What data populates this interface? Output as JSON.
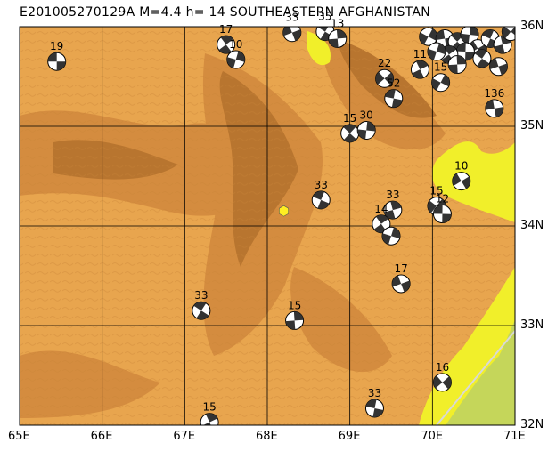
{
  "title": "E201005270129A  M=4.4  h=  14  SOUTHEASTERN  AFGHANISTAN",
  "axes": {
    "lon_labels": [
      "65E",
      "66E",
      "67E",
      "68E",
      "69E",
      "70E",
      "71E"
    ],
    "lat_labels": [
      "36N",
      "35N",
      "34N",
      "33N",
      "32N"
    ],
    "lon_range": [
      65,
      71
    ],
    "lat_range": [
      32,
      36
    ]
  },
  "colors": {
    "terrain_base": "#e8a54e",
    "terrain_mid": "#d48c3f",
    "terrain_high": "#b8752f",
    "lowland_yellow": "#f1ef2a",
    "lowland_green": "#c5d65a",
    "grid": "#000000",
    "beachball": "#ffffff",
    "epicenter": "#ffee22"
  },
  "event": {
    "id": "E201005270129A",
    "magnitude": 4.4,
    "depth_km": 14,
    "lon": 68.2,
    "lat": 34.15
  },
  "mechanisms": [
    {
      "depth": "19",
      "lon": 65.45,
      "lat": 35.65
    },
    {
      "depth": "17",
      "lon": 67.5,
      "lat": 35.82
    },
    {
      "depth": "10",
      "lon": 67.62,
      "lat": 35.67
    },
    {
      "depth": "33",
      "lon": 68.3,
      "lat": 35.94
    },
    {
      "depth": "35",
      "lon": 68.7,
      "lat": 35.95
    },
    {
      "depth": "13",
      "lon": 68.85,
      "lat": 35.88
    },
    {
      "depth": "22",
      "lon": 69.42,
      "lat": 35.48
    },
    {
      "depth": "52",
      "lon": 69.53,
      "lat": 35.28
    },
    {
      "depth": "11",
      "lon": 69.85,
      "lat": 35.57
    },
    {
      "depth": "15",
      "lon": 70.1,
      "lat": 35.44
    },
    {
      "depth": "136",
      "lon": 70.75,
      "lat": 35.18
    },
    {
      "depth": "15",
      "lon": 69.0,
      "lat": 34.93
    },
    {
      "depth": "30",
      "lon": 69.2,
      "lat": 34.96
    },
    {
      "depth": "10",
      "lon": 70.35,
      "lat": 34.45
    },
    {
      "depth": "33",
      "lon": 68.65,
      "lat": 34.26
    },
    {
      "depth": "33",
      "lon": 69.52,
      "lat": 34.16
    },
    {
      "depth": "15",
      "lon": 70.05,
      "lat": 34.2
    },
    {
      "depth": "12",
      "lon": 70.12,
      "lat": 34.12
    },
    {
      "depth": "14",
      "lon": 69.38,
      "lat": 34.02
    },
    {
      "depth": "",
      "lon": 69.5,
      "lat": 33.9
    },
    {
      "depth": "17",
      "lon": 69.62,
      "lat": 33.42
    },
    {
      "depth": "33",
      "lon": 67.2,
      "lat": 33.15
    },
    {
      "depth": "15",
      "lon": 68.33,
      "lat": 33.05
    },
    {
      "depth": "16",
      "lon": 70.12,
      "lat": 32.43
    },
    {
      "depth": "33",
      "lon": 69.3,
      "lat": 32.17
    },
    {
      "depth": "15",
      "lon": 67.3,
      "lat": 32.03
    },
    {
      "depth": "",
      "lon": 69.95,
      "lat": 35.9
    },
    {
      "depth": "",
      "lon": 70.15,
      "lat": 35.88
    },
    {
      "depth": "",
      "lon": 70.3,
      "lat": 35.85
    },
    {
      "depth": "",
      "lon": 70.45,
      "lat": 35.92
    },
    {
      "depth": "",
      "lon": 70.55,
      "lat": 35.78
    },
    {
      "depth": "",
      "lon": 70.7,
      "lat": 35.88
    },
    {
      "depth": "",
      "lon": 70.85,
      "lat": 35.82
    },
    {
      "depth": "",
      "lon": 70.95,
      "lat": 35.95
    },
    {
      "depth": "",
      "lon": 70.4,
      "lat": 35.75
    },
    {
      "depth": "",
      "lon": 70.2,
      "lat": 35.72
    },
    {
      "depth": "",
      "lon": 70.05,
      "lat": 35.75
    },
    {
      "depth": "",
      "lon": 70.8,
      "lat": 35.6
    },
    {
      "depth": "",
      "lon": 70.6,
      "lat": 35.68
    },
    {
      "depth": "",
      "lon": 70.3,
      "lat": 35.62
    }
  ]
}
